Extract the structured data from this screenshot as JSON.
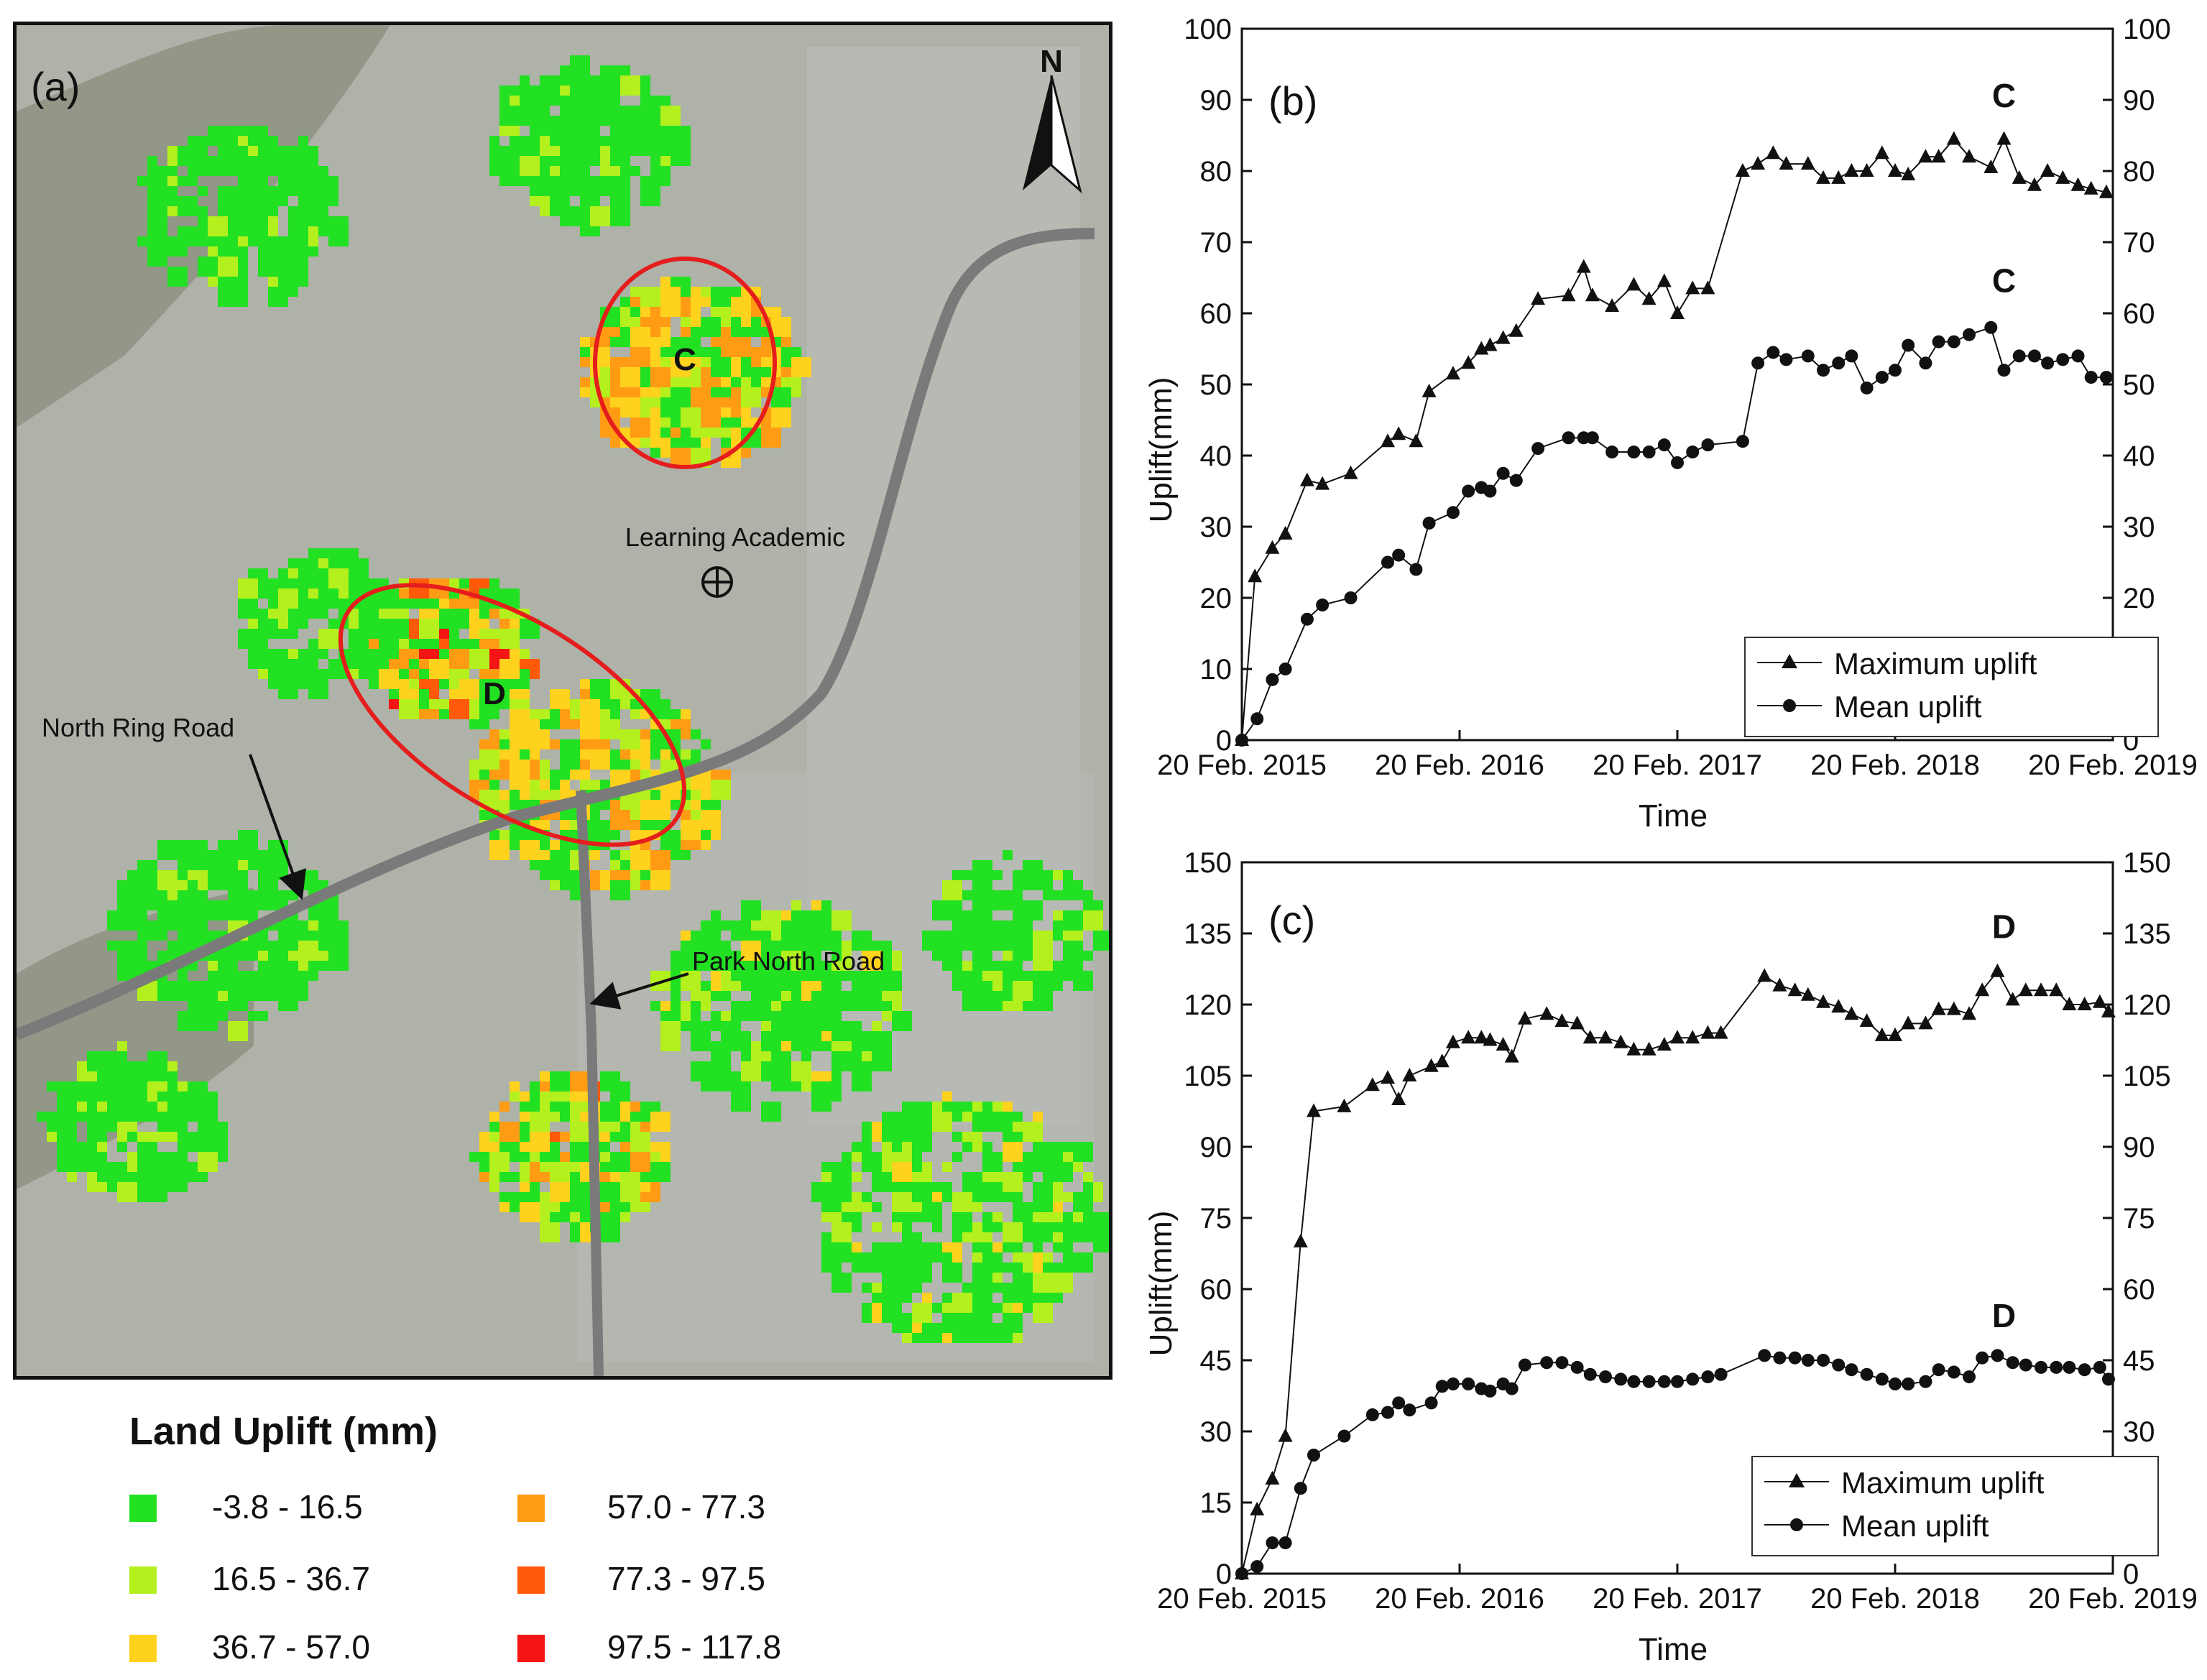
{
  "map": {
    "panel_label": "(a)",
    "north_label": "N",
    "zones": [
      {
        "label": "C"
      },
      {
        "label": "D"
      }
    ],
    "annotations": {
      "learning_academic": "Learning Academic",
      "north_ring_road": "North Ring Road",
      "park_north_road": "Park North Road"
    },
    "colors": {
      "imagery": "#aeb2a8",
      "road": "#7a7a7a",
      "ellipse": "#e51d1d"
    }
  },
  "legend": {
    "title": "Land Uplift (mm)",
    "classes": [
      {
        "label": "-3.8 - 16.5",
        "color": "#22e022"
      },
      {
        "label": "16.5 - 36.7",
        "color": "#b4f01e"
      },
      {
        "label": "36.7 - 57.0",
        "color": "#ffd21e"
      },
      {
        "label": "57.0 - 77.3",
        "color": "#ff9c14"
      },
      {
        "label": "77.3 - 97.5",
        "color": "#ff5a0a"
      },
      {
        "label": "97.5 - 117.8",
        "color": "#f51414"
      }
    ]
  },
  "chart_data": [
    {
      "id": "b",
      "type": "line",
      "panel_label": "(b)",
      "xlabel": "Time",
      "ylabel": "Uplift(mm)",
      "ylim": [
        0,
        100
      ],
      "yticks": [
        0,
        10,
        20,
        30,
        40,
        50,
        60,
        70,
        80,
        90,
        100
      ],
      "xlim": [
        0,
        4.0
      ],
      "xticks": [
        {
          "x": 0,
          "label": "20 Feb. 2015"
        },
        {
          "x": 1,
          "label": "20 Feb. 2016"
        },
        {
          "x": 2,
          "label": "20 Feb. 2017"
        },
        {
          "x": 3,
          "label": "20 Feb. 2018"
        },
        {
          "x": 4,
          "label": "20 Feb. 2019"
        }
      ],
      "annotations": [
        {
          "text": "C",
          "x": 3.5,
          "y": 89
        },
        {
          "text": "C",
          "x": 3.5,
          "y": 63
        }
      ],
      "legend_position": "bottom-right",
      "series": [
        {
          "name": "Maximum uplift",
          "marker": "triangle",
          "x": [
            0,
            0.06,
            0.14,
            0.2,
            0.3,
            0.37,
            0.5,
            0.67,
            0.72,
            0.8,
            0.86,
            0.97,
            1.04,
            1.1,
            1.14,
            1.2,
            1.26,
            1.36,
            1.5,
            1.57,
            1.61,
            1.7,
            1.8,
            1.87,
            1.94,
            2.0,
            2.07,
            2.14,
            2.3,
            2.37,
            2.44,
            2.5,
            2.6,
            2.67,
            2.74,
            2.8,
            2.87,
            2.94,
            3.0,
            3.06,
            3.14,
            3.2,
            3.27,
            3.34,
            3.44,
            3.5,
            3.57,
            3.64,
            3.7,
            3.77,
            3.84,
            3.9,
            3.97
          ],
          "values": [
            0,
            23,
            27,
            29,
            36.5,
            36,
            37.5,
            42,
            43,
            42,
            49,
            51.5,
            53,
            55,
            55.5,
            56.5,
            57.5,
            62,
            62.5,
            66.5,
            62.5,
            61,
            64,
            62,
            64.5,
            60,
            63.5,
            63.5,
            80,
            81,
            82.5,
            81,
            81,
            79,
            79,
            80,
            80,
            82.5,
            80,
            79.5,
            82,
            82,
            84.5,
            82,
            80.5,
            84.5,
            79,
            78,
            80,
            79,
            78,
            77.5,
            77
          ]
        },
        {
          "name": "Mean uplift",
          "marker": "circle",
          "x": [
            0,
            0.07,
            0.14,
            0.2,
            0.3,
            0.37,
            0.5,
            0.67,
            0.72,
            0.8,
            0.86,
            0.97,
            1.04,
            1.1,
            1.14,
            1.2,
            1.26,
            1.36,
            1.5,
            1.57,
            1.61,
            1.7,
            1.8,
            1.87,
            1.94,
            2.0,
            2.07,
            2.14,
            2.3,
            2.37,
            2.44,
            2.5,
            2.6,
            2.67,
            2.74,
            2.8,
            2.87,
            2.94,
            3.0,
            3.06,
            3.14,
            3.2,
            3.27,
            3.34,
            3.44,
            3.5,
            3.57,
            3.64,
            3.7,
            3.77,
            3.84,
            3.9,
            3.97
          ],
          "values": [
            0,
            3,
            8.5,
            10,
            17,
            19,
            20,
            25,
            26,
            24,
            30.5,
            32,
            35,
            35.5,
            35,
            37.5,
            36.5,
            41,
            42.5,
            42.5,
            42.5,
            40.5,
            40.5,
            40.5,
            41.5,
            39,
            40.5,
            41.5,
            42,
            53,
            54.5,
            53.5,
            54,
            52,
            53,
            54,
            49.5,
            51,
            52,
            55.5,
            53,
            56,
            56,
            57,
            58,
            52,
            54,
            54,
            53,
            53.5,
            54,
            51,
            51
          ]
        }
      ]
    },
    {
      "id": "c",
      "type": "line",
      "panel_label": "(c)",
      "xlabel": "Time",
      "ylabel": "Uplift(mm)",
      "ylim": [
        0,
        150
      ],
      "yticks": [
        0,
        15,
        30,
        45,
        60,
        75,
        90,
        105,
        120,
        135,
        150
      ],
      "xlim": [
        0,
        4.0
      ],
      "xticks": [
        {
          "x": 0,
          "label": "20 Feb. 2015"
        },
        {
          "x": 1,
          "label": "20 Feb. 2016"
        },
        {
          "x": 2,
          "label": "20 Feb. 2017"
        },
        {
          "x": 3,
          "label": "20 Feb. 2018"
        },
        {
          "x": 4,
          "label": "20 Feb. 2019"
        }
      ],
      "annotations": [
        {
          "text": "D",
          "x": 3.5,
          "y": 134
        },
        {
          "text": "D",
          "x": 3.5,
          "y": 52
        }
      ],
      "legend_position": "bottom-right",
      "series": [
        {
          "name": "Maximum uplift",
          "marker": "triangle",
          "x": [
            0,
            0.07,
            0.14,
            0.2,
            0.27,
            0.33,
            0.47,
            0.6,
            0.67,
            0.72,
            0.77,
            0.87,
            0.92,
            0.97,
            1.04,
            1.1,
            1.14,
            1.2,
            1.24,
            1.3,
            1.4,
            1.47,
            1.54,
            1.6,
            1.67,
            1.74,
            1.8,
            1.87,
            1.94,
            2.0,
            2.07,
            2.14,
            2.2,
            2.4,
            2.47,
            2.54,
            2.6,
            2.67,
            2.74,
            2.8,
            2.87,
            2.94,
            3.0,
            3.06,
            3.14,
            3.2,
            3.27,
            3.34,
            3.4,
            3.47,
            3.54,
            3.6,
            3.67,
            3.74,
            3.8,
            3.87,
            3.94,
            3.98
          ],
          "values": [
            0,
            13.5,
            20,
            29,
            70,
            97.5,
            98.5,
            103,
            104.5,
            100,
            105,
            107,
            108,
            112,
            113,
            113,
            112.5,
            111.5,
            109,
            117,
            118,
            116.5,
            116,
            113,
            113,
            112,
            110.5,
            110.5,
            111.5,
            113,
            113,
            114,
            114,
            126,
            124,
            123,
            122,
            120.5,
            119.5,
            118,
            116.5,
            113.5,
            113.5,
            116,
            116,
            119,
            119,
            118,
            123,
            127,
            121,
            123,
            123,
            123,
            120,
            120,
            120.5,
            118.5
          ]
        },
        {
          "name": "Mean uplift",
          "marker": "circle",
          "x": [
            0,
            0.07,
            0.14,
            0.2,
            0.27,
            0.33,
            0.47,
            0.6,
            0.67,
            0.72,
            0.77,
            0.87,
            0.92,
            0.97,
            1.04,
            1.1,
            1.14,
            1.2,
            1.24,
            1.3,
            1.4,
            1.47,
            1.54,
            1.6,
            1.67,
            1.74,
            1.8,
            1.87,
            1.94,
            2.0,
            2.07,
            2.14,
            2.2,
            2.4,
            2.47,
            2.54,
            2.6,
            2.67,
            2.74,
            2.8,
            2.87,
            2.94,
            3.0,
            3.06,
            3.14,
            3.2,
            3.27,
            3.34,
            3.4,
            3.47,
            3.54,
            3.6,
            3.67,
            3.74,
            3.8,
            3.87,
            3.94,
            3.98
          ],
          "values": [
            0,
            1.5,
            6.5,
            6.5,
            18,
            25,
            29,
            33.5,
            34,
            36,
            34.5,
            36,
            39.5,
            40,
            40,
            39,
            38.5,
            40,
            39,
            44,
            44.5,
            44.5,
            43.5,
            42,
            41.5,
            41,
            40.5,
            40.5,
            40.5,
            40.5,
            41,
            41.5,
            42,
            46,
            45.5,
            45.5,
            45,
            45,
            44,
            43,
            42,
            41,
            40,
            40,
            40.5,
            43,
            42.5,
            41.5,
            45.5,
            46,
            44.5,
            44,
            43.5,
            43.5,
            43.5,
            43,
            43.5,
            41
          ]
        }
      ]
    }
  ]
}
